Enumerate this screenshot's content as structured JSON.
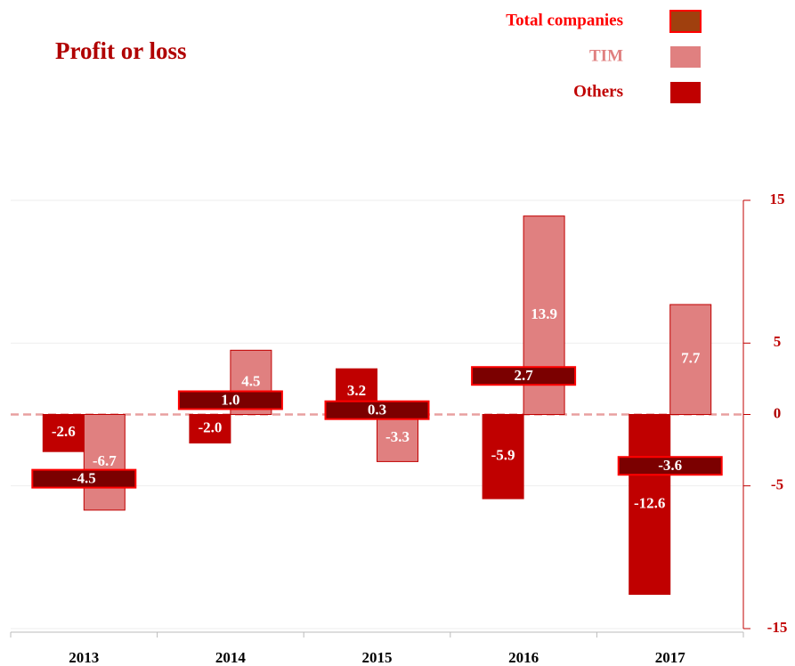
{
  "chart_data": {
    "type": "bar",
    "title": "Profit or loss",
    "categories": [
      "2013",
      "2014",
      "2015",
      "2016",
      "2017"
    ],
    "series": [
      {
        "name": "Total companies",
        "color": "#7b0000",
        "edgecolor": "#ff0000",
        "style": "overlay",
        "values": [
          -4.5,
          1.0,
          0.3,
          2.7,
          -3.6
        ],
        "value_labels": [
          "-4.5",
          "1.0",
          "0.3",
          "2.7",
          "-3.6"
        ]
      },
      {
        "name": "TIM",
        "color": "#e08080",
        "edgecolor": "#c00000",
        "values": [
          -6.7,
          4.5,
          -3.3,
          13.9,
          7.7
        ],
        "value_labels": [
          "-6.7",
          "4.5",
          "-3.3",
          "13.9",
          "7.7"
        ]
      },
      {
        "name": "Others",
        "color": "#c00000",
        "edgecolor": "#c00000",
        "values": [
          -2.6,
          -2.0,
          3.2,
          -5.9,
          -12.6
        ],
        "value_labels": [
          "-2.6",
          "-2.0",
          "3.2",
          "-5.9",
          "-12.6"
        ]
      }
    ],
    "ylim": [
      -15,
      15
    ],
    "yticks": [
      -15,
      -5,
      0,
      5,
      15
    ],
    "y_axis_side": "right",
    "grid": true,
    "legend": "upper right"
  }
}
